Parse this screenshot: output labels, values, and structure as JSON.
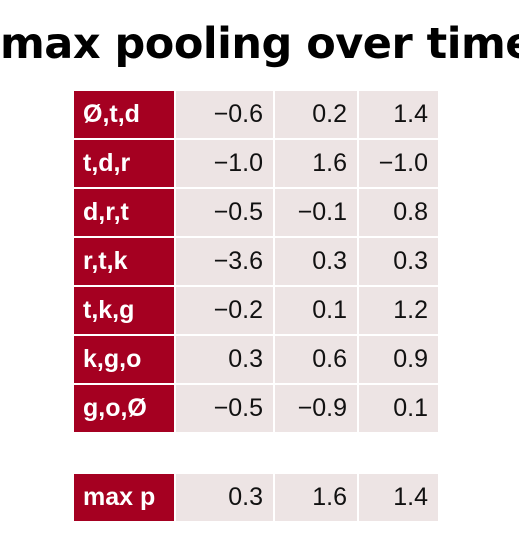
{
  "title": "max pooling over time",
  "rows": [
    {
      "label": "Ø,t,d",
      "values": [
        "−0.6",
        "0.2",
        "1.4"
      ]
    },
    {
      "label": "t,d,r",
      "values": [
        "−1.0",
        "1.6",
        "−1.0"
      ]
    },
    {
      "label": "d,r,t",
      "values": [
        "−0.5",
        "−0.1",
        "0.8"
      ]
    },
    {
      "label": "r,t,k",
      "values": [
        "−3.6",
        "0.3",
        "0.3"
      ]
    },
    {
      "label": "t,k,g",
      "values": [
        "−0.2",
        "0.1",
        "1.2"
      ]
    },
    {
      "label": "k,g,o",
      "values": [
        "0.3",
        "0.6",
        "0.9"
      ]
    },
    {
      "label": "g,o,Ø",
      "values": [
        "−0.5",
        "−0.9",
        "0.1"
      ]
    }
  ],
  "max_row": {
    "label": "max p",
    "values": [
      "0.3",
      "1.6",
      "1.4"
    ]
  },
  "colors": {
    "label_bg": "#a50021",
    "label_text": "#ffffff",
    "value_bg": "#ede4e4",
    "title_text": "#000000"
  }
}
